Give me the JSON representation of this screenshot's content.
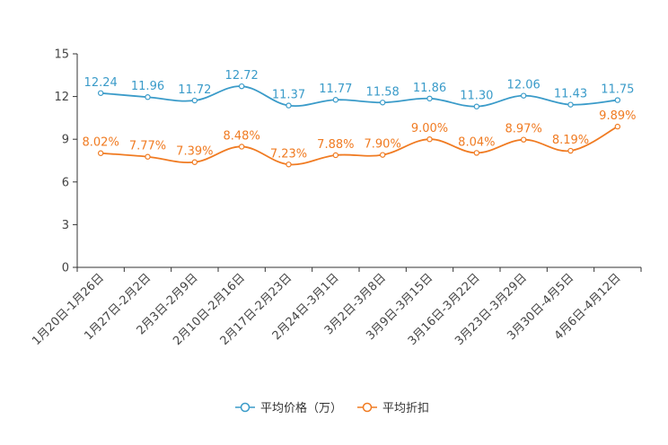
{
  "chart_data": {
    "type": "line",
    "title": "",
    "xlabel": "",
    "ylabel": "",
    "ylim": [
      0,
      15
    ],
    "yticks": [
      0,
      3,
      6,
      9,
      12,
      15
    ],
    "grid": false,
    "legend_position": "bottom-center",
    "categories": [
      "1月20日-1月26日",
      "1月27日-2月2日",
      "2月3日-2月9日",
      "2月10日-2月16日",
      "2月17日-2月23日",
      "2月24日-3月1日",
      "3月2日-3月8日",
      "3月9日-3月15日",
      "3月16日-3月22日",
      "3月23日-3月29日",
      "3月30日-4月5日",
      "4月6日-4月12日"
    ],
    "series": [
      {
        "name": "平均价格（万）",
        "color": "#3a9bc9",
        "values": [
          12.24,
          11.96,
          11.72,
          12.72,
          11.37,
          11.77,
          11.58,
          11.86,
          11.3,
          12.06,
          11.43,
          11.75
        ],
        "labels": [
          "12.24",
          "11.96",
          "11.72",
          "12.72",
          "11.37",
          "11.77",
          "11.58",
          "11.86",
          "11.30",
          "12.06",
          "11.43",
          "11.75"
        ]
      },
      {
        "name": "平均折扣",
        "color": "#f07b22",
        "values": [
          8.02,
          7.77,
          7.39,
          8.48,
          7.23,
          7.88,
          7.9,
          9.0,
          8.04,
          8.97,
          8.19,
          9.89
        ],
        "labels": [
          "8.02%",
          "7.77%",
          "7.39%",
          "8.48%",
          "7.23%",
          "7.88%",
          "7.90%",
          "9.00%",
          "8.04%",
          "8.97%",
          "8.19%",
          "9.89%"
        ]
      }
    ]
  }
}
